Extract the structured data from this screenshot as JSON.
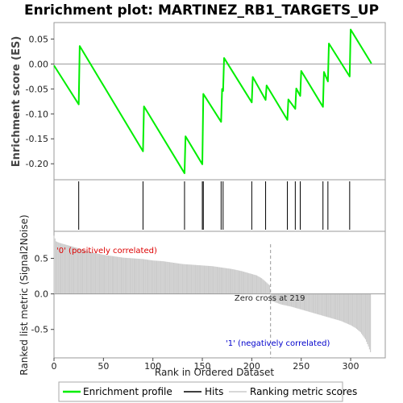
{
  "chart_data": {
    "type": "line",
    "title": "Enrichment plot: MARTINEZ_RB1_TARGETS_UP",
    "x_label": "Rank in Ordered Dataset",
    "x_range": [
      0,
      335
    ],
    "x_ticks": [
      "0",
      "50",
      "100",
      "150",
      "200",
      "250",
      "300"
    ],
    "x_tick_values": [
      0,
      50,
      100,
      150,
      200,
      250,
      300
    ],
    "es_panel": {
      "y_label": "Enrichment score (ES)",
      "y_range": [
        -0.232,
        0.083
      ],
      "y_ticks": [
        "0.05",
        "0.00",
        "-0.05",
        "-0.10",
        "-0.15",
        "-0.20"
      ],
      "y_tick_values": [
        0.05,
        0.0,
        -0.05,
        -0.1,
        -0.15,
        -0.2
      ],
      "series": [
        {
          "name": "Enrichment profile",
          "color": "#00ee00",
          "x": [
            0,
            25,
            26,
            90,
            91,
            132,
            133,
            150,
            151,
            169,
            170,
            171,
            172,
            200,
            201,
            214,
            215,
            236,
            237,
            244,
            245,
            249,
            250,
            272,
            273,
            277,
            278,
            299,
            300,
            321
          ],
          "y": [
            -0.003,
            -0.081,
            0.036,
            -0.175,
            -0.085,
            -0.219,
            -0.145,
            -0.201,
            -0.06,
            -0.116,
            -0.05,
            -0.054,
            0.012,
            -0.077,
            -0.026,
            -0.072,
            -0.043,
            -0.112,
            -0.071,
            -0.09,
            -0.049,
            -0.064,
            -0.014,
            -0.086,
            -0.016,
            -0.035,
            0.041,
            -0.025,
            0.069,
            0.001
          ]
        }
      ]
    },
    "hits_panel": {
      "name": "Hits",
      "hit_ranks": [
        25,
        90,
        132,
        150,
        151,
        169,
        171,
        200,
        214,
        236,
        244,
        249,
        272,
        277,
        299
      ]
    },
    "metric_panel": {
      "name": "Ranking metric scores",
      "y_label": "Ranked list metric (Signal2Noise)",
      "y_range": [
        -0.9,
        0.88
      ],
      "y_ticks": [
        "0.5",
        "0.0",
        "-0.5"
      ],
      "y_tick_values": [
        0.5,
        0.0,
        -0.5
      ],
      "zero_cross_rank": 219,
      "zero_cross_label": "Zero cross at 219",
      "positive_label": "'0' (positively correlated)",
      "negative_label": "'1' (negatively correlated)",
      "n_ranks": 321,
      "anchor_ranks": [
        0,
        2,
        5,
        10,
        20,
        30,
        40,
        50,
        60,
        70,
        80,
        90,
        100,
        110,
        120,
        130,
        140,
        150,
        160,
        170,
        180,
        190,
        200,
        205,
        210,
        215,
        218,
        219,
        220,
        230,
        240,
        250,
        260,
        270,
        280,
        290,
        300,
        305,
        310,
        315,
        318,
        320
      ],
      "anchor_values": [
        0.82,
        0.74,
        0.72,
        0.7,
        0.66,
        0.62,
        0.58,
        0.55,
        0.53,
        0.51,
        0.5,
        0.49,
        0.47,
        0.46,
        0.44,
        0.42,
        0.41,
        0.4,
        0.39,
        0.37,
        0.35,
        0.32,
        0.28,
        0.26,
        0.22,
        0.16,
        0.12,
        0.0,
        -0.1,
        -0.15,
        -0.18,
        -0.22,
        -0.26,
        -0.3,
        -0.34,
        -0.38,
        -0.44,
        -0.48,
        -0.54,
        -0.64,
        -0.74,
        -0.82
      ]
    },
    "color_bar": {
      "positive_color": "#ff0000",
      "negative_color": "#0000cc",
      "segments": [
        {
          "from": 0,
          "to": 10,
          "color": "#dd0000"
        },
        {
          "from": 10,
          "to": 40,
          "color": "#ee2222"
        },
        {
          "from": 40,
          "to": 105,
          "color": "#ff5555"
        },
        {
          "from": 105,
          "to": 170,
          "color": "#ff7777"
        },
        {
          "from": 170,
          "to": 205,
          "color": "#ff9090"
        },
        {
          "from": 205,
          "to": 218,
          "color": "#ffc8c8"
        },
        {
          "from": 218,
          "to": 230,
          "color": "#eeeeff"
        },
        {
          "from": 230,
          "to": 250,
          "color": "#c8c8f8"
        },
        {
          "from": 250,
          "to": 275,
          "color": "#8888ee"
        },
        {
          "from": 275,
          "to": 305,
          "color": "#5555dd"
        },
        {
          "from": 305,
          "to": 321,
          "color": "#2222cc"
        }
      ]
    },
    "legend": {
      "placement": "bottom",
      "entries": [
        {
          "name": "Enrichment profile",
          "color": "#00ee00"
        },
        {
          "name": "Hits",
          "color": "#000000"
        },
        {
          "name": "Ranking metric scores",
          "color": "#cccccc"
        }
      ]
    }
  }
}
